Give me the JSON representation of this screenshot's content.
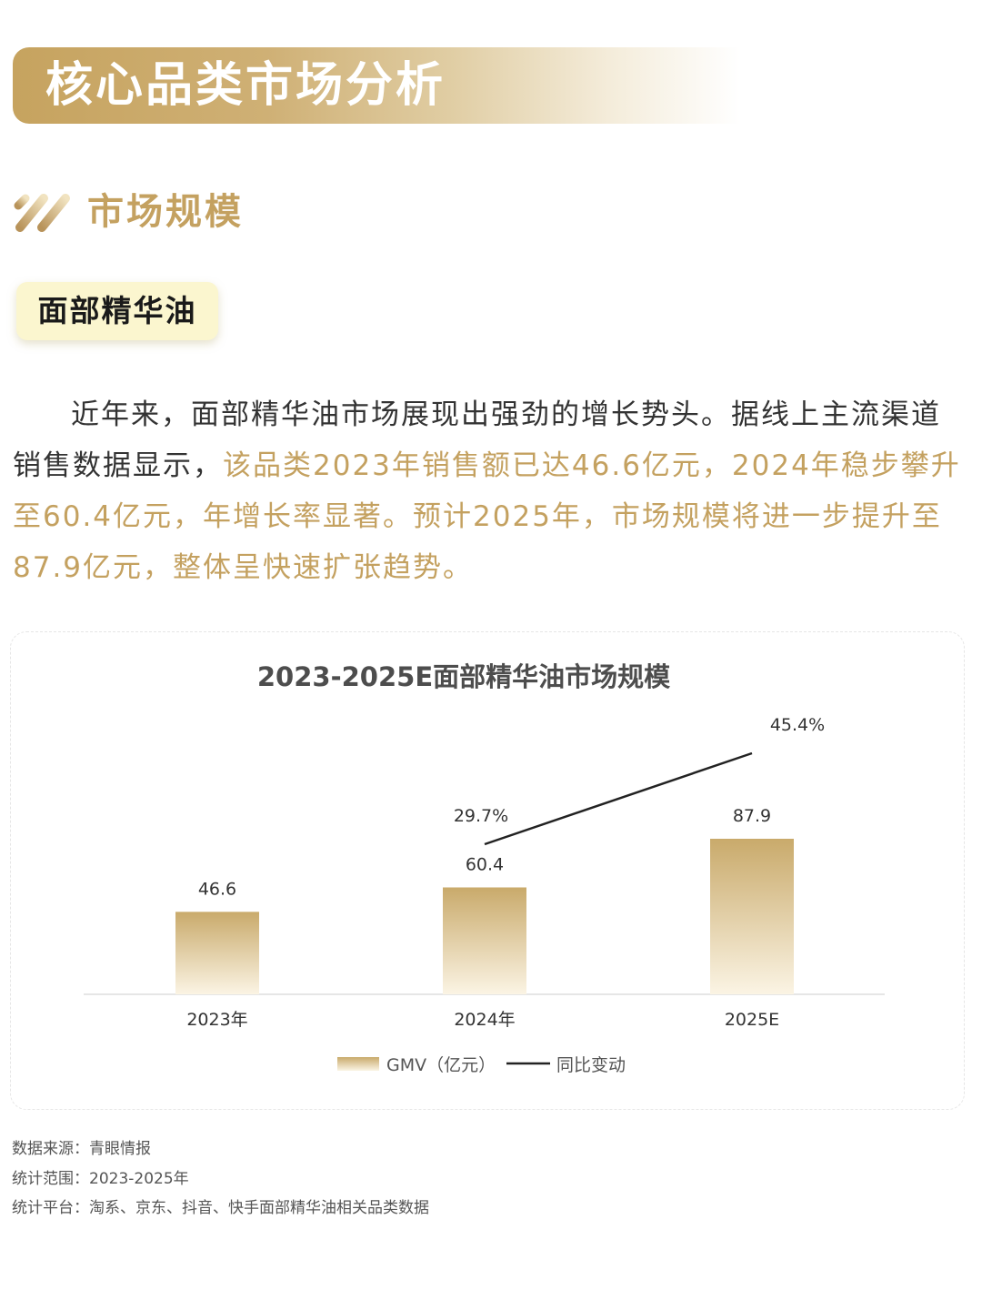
{
  "header": {
    "title": "核心品类市场分析"
  },
  "section": {
    "title": "市场规模"
  },
  "category": {
    "label": "面部精华油"
  },
  "paragraph": {
    "part1": "近年来，面部精华油市场展现出强劲的增长势头。据线上主流渠道销售数据显示，",
    "part2": "该品类2023年销售额已达46.6亿元，2024年稳步攀升至60.4亿元，年增长率显著。预计2025年，市场规模将进一步提升至87.9亿元，整体呈快速扩张趋势。"
  },
  "chart_data": {
    "type": "bar",
    "title": "2023-2025E面部精华油市场规模",
    "categories": [
      "2023年",
      "2024年",
      "2025E"
    ],
    "series": [
      {
        "name": "GMV（亿元）",
        "type": "bar",
        "values": [
          46.6,
          60.4,
          87.9
        ],
        "labels": [
          "46.6",
          "60.4",
          "87.9"
        ]
      },
      {
        "name": "同比变动",
        "type": "line",
        "values": [
          null,
          29.7,
          45.4
        ],
        "labels": [
          "",
          "29.7%",
          "45.4%"
        ]
      }
    ],
    "legend_position": "bottom",
    "grid": false,
    "colors": {
      "bar_top": "#c9aa6b",
      "bar_bottom": "#fbf4e4",
      "line": "#222222",
      "accent": "#c4a160"
    }
  },
  "notes": {
    "source": "数据来源：青眼情报",
    "range": "统计范围：2023-2025年",
    "platform": "统计平台：淘系、京东、抖音、快手面部精华油相关品类数据"
  }
}
